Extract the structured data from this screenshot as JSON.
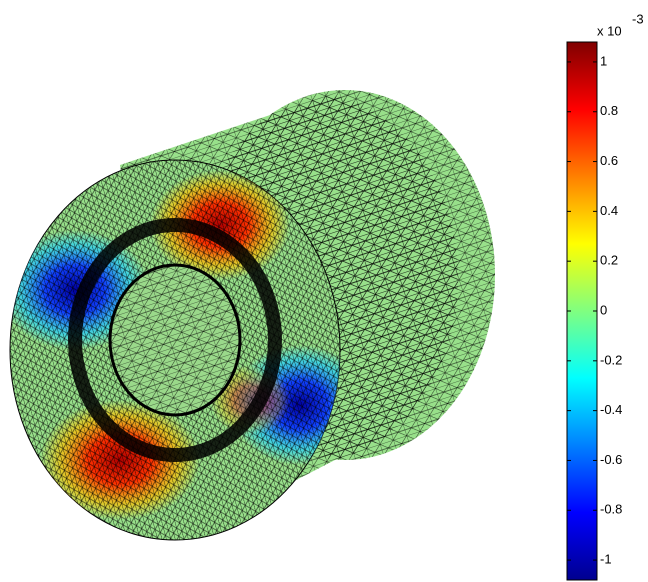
{
  "chart_data": {
    "type": "colorbar-mesh",
    "colorbar": {
      "colormap": "jet",
      "clim": [
        -1.08,
        1.08
      ],
      "ticks": [
        1,
        0.8,
        0.6,
        0.4,
        0.2,
        0,
        -0.2,
        -0.4,
        -0.6,
        -0.8,
        -1
      ],
      "scale_label": "x 10",
      "scale_exponent": "-3"
    }
  }
}
